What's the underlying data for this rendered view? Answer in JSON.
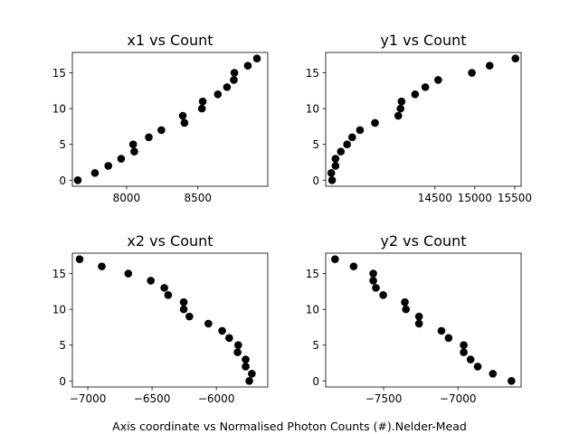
{
  "figure": {
    "caption": "Axis coordinate vs Normalised Photon Counts (#).Nelder-Mead"
  },
  "chart_data": [
    {
      "type": "scatter",
      "title": "x1 vs Count",
      "xlabel": "",
      "ylabel": "",
      "xlim": [
        7620,
        8990
      ],
      "ylim": [
        -0.85,
        17.85
      ],
      "xticks": [
        8000,
        8500
      ],
      "yticks": [
        0,
        5,
        10,
        15
      ],
      "x": [
        7658,
        7778,
        7872,
        7962,
        8046,
        8054,
        8156,
        8244,
        8394,
        8406,
        8528,
        8534,
        8640,
        8704,
        8752,
        8756,
        8850,
        8914
      ],
      "y": [
        0,
        1,
        2,
        3,
        5,
        4,
        6,
        7,
        9,
        8,
        10,
        11,
        12,
        13,
        14,
        15,
        16,
        17
      ],
      "marker_color": "#000000",
      "grid": false
    },
    {
      "type": "scatter",
      "title": "y1 vs Count",
      "xlabel": "",
      "ylabel": "",
      "xlim": [
        13130,
        15580
      ],
      "ylim": [
        -0.85,
        17.85
      ],
      "xticks": [
        14500,
        15000,
        15500
      ],
      "yticks": [
        0,
        5,
        10,
        15
      ],
      "x": [
        13200,
        13210,
        13253,
        13253,
        13320,
        13398,
        13462,
        13560,
        13748,
        14040,
        14068,
        14081,
        14251,
        14379,
        14540,
        14963,
        15186,
        15509
      ],
      "y": [
        1,
        0,
        2,
        3,
        4,
        5,
        6,
        7,
        8,
        9,
        10,
        11,
        12,
        13,
        14,
        15,
        16,
        17
      ],
      "marker_color": "#000000",
      "grid": false
    },
    {
      "type": "scatter",
      "title": "x2 vs Count",
      "xlabel": "",
      "ylabel": "",
      "xlim": [
        -7120,
        -5600
      ],
      "ylim": [
        -0.85,
        17.85
      ],
      "xticks": [
        -7000,
        -6500,
        -6000
      ],
      "yticks": [
        0,
        5,
        10,
        15
      ],
      "x": [
        -7064,
        -6891,
        -6685,
        -6510,
        -6405,
        -6375,
        -6254,
        -6254,
        -6210,
        -6062,
        -5955,
        -5900,
        -5830,
        -5835,
        -5772,
        -5772,
        -5744,
        -5724
      ],
      "y": [
        17,
        16,
        15,
        14,
        13,
        12,
        11,
        10,
        9,
        8,
        7,
        6,
        5,
        4,
        3,
        2,
        0,
        1
      ],
      "marker_color": "#000000",
      "grid": false
    },
    {
      "type": "scatter",
      "title": "y2 vs Count",
      "xlabel": "",
      "ylabel": "",
      "xlim": [
        -7890,
        -6575
      ],
      "ylim": [
        -0.85,
        17.85
      ],
      "xticks": [
        -7500,
        -7000
      ],
      "yticks": [
        0,
        5,
        10,
        15
      ],
      "x": [
        -7827,
        -7702,
        -7570,
        -7570,
        -7552,
        -7503,
        -7357,
        -7350,
        -7262,
        -7262,
        -7111,
        -7063,
        -6961,
        -6961,
        -6915,
        -6867,
        -6765,
        -6640
      ],
      "y": [
        17,
        16,
        15,
        14,
        13,
        12,
        11,
        10,
        9,
        8,
        7,
        6,
        5,
        4,
        3,
        2,
        1,
        0
      ],
      "marker_color": "#000000",
      "grid": false
    }
  ]
}
